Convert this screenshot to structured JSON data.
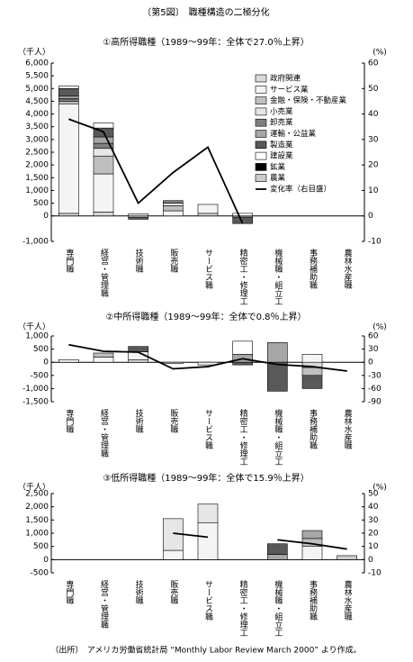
{
  "title": "〔第5図〕　職種構造の二極分化",
  "source": "（出所）　アメリカ労働省統計局 “Monthly Labor Review March 2000” より作成。",
  "chart_data": [
    {
      "type": "bar",
      "title": "①高所得職種（1989～99年：全体で27.0％上昇）",
      "y_label": "（千人）",
      "y2_label": "(%)",
      "legend": "upper right",
      "categories": [
        "専門職",
        "経営・管理職",
        "技術職",
        "販売職",
        "サービス職",
        "精密工・修理工",
        "機械職・組立工",
        "事務補助職",
        "農林水産職"
      ],
      "ylim": [
        -1000,
        6000
      ],
      "yticks": [
        {
          "value": -1000,
          "label": "-1,000"
        },
        0,
        500,
        {
          "value": 1000,
          "label": "1,000"
        },
        {
          "value": 1500,
          "label": "1,500"
        },
        {
          "value": 2000,
          "label": "2,000"
        },
        {
          "value": 2500,
          "label": "2,500"
        },
        {
          "value": 3000,
          "label": "3,000"
        },
        {
          "value": 3500,
          "label": "3,500"
        },
        {
          "value": 4000,
          "label": "4,000"
        },
        {
          "value": 4500,
          "label": "4,500"
        },
        {
          "value": 5000,
          "label": "5,000"
        },
        {
          "value": 5500,
          "label": "5,500"
        },
        {
          "value": 6000,
          "label": "6,000"
        }
      ],
      "y2lim": [
        -10,
        60
      ],
      "y2ticks": [
        -10,
        0,
        10,
        20,
        30,
        40,
        50,
        60
      ],
      "series": [
        {
          "name": "政府関連",
          "color": "#d9d9d9",
          "values": [
            100,
            150,
            -50,
            0,
            100,
            0,
            0,
            0,
            0
          ]
        },
        {
          "name": "サービス業",
          "color": "#f4f4f4",
          "values": [
            4300,
            1500,
            80,
            200,
            350,
            0,
            0,
            0,
            0
          ]
        },
        {
          "name": "金融・保険・不動産業",
          "color": "#bfbfbf",
          "values": [
            100,
            700,
            0,
            200,
            0,
            0,
            0,
            0,
            0
          ]
        },
        {
          "name": "小売業",
          "color": "#e6e6e6",
          "values": [
            50,
            300,
            0,
            100,
            0,
            0,
            0,
            0,
            0
          ]
        },
        {
          "name": "卸売業",
          "color": "#808080",
          "values": [
            50,
            200,
            0,
            100,
            0,
            0,
            0,
            0,
            0
          ]
        },
        {
          "name": "運輸・公益業",
          "color": "#a6a6a6",
          "values": [
            100,
            250,
            0,
            0,
            0,
            -50,
            0,
            0,
            0
          ]
        },
        {
          "name": "製造業",
          "color": "#595959",
          "values": [
            300,
            350,
            -80,
            0,
            0,
            -250,
            0,
            0,
            0
          ]
        },
        {
          "name": "建設業",
          "color": "#ffffff",
          "values": [
            100,
            200,
            0,
            0,
            0,
            100,
            0,
            0,
            0
          ]
        },
        {
          "name": "鉱業",
          "color": "#000000",
          "values": [
            0,
            0,
            0,
            0,
            0,
            0,
            0,
            0,
            0
          ]
        },
        {
          "name": "農業",
          "color": "#cccccc",
          "values": [
            0,
            0,
            0,
            0,
            0,
            0,
            0,
            0,
            0
          ]
        },
        {
          "name": "変化率（右目盛）",
          "color": "#000000",
          "type": "line",
          "axis": "y2",
          "values": [
            38,
            33,
            5,
            17,
            27,
            -3,
            null,
            null,
            null
          ]
        }
      ]
    },
    {
      "type": "bar",
      "title": "②中所得職種（1989～99年：全体で0.8％上昇）",
      "y_label": "（千人）",
      "y2_label": "(%)",
      "categories": [
        "専門職",
        "経営・管理職",
        "技術職",
        "販売職",
        "サービス職",
        "精密工・修理工",
        "機械職・組立工",
        "事務補助職",
        "農林水産職"
      ],
      "ylim": [
        -1500,
        1000
      ],
      "yticks": [
        {
          "value": -1500,
          "label": "-1,500"
        },
        {
          "value": -1000,
          "label": "-1,000"
        },
        -500,
        0,
        500,
        {
          "value": 1000,
          "label": "1,000"
        }
      ],
      "y2lim": [
        -90,
        60
      ],
      "y2ticks": [
        -90,
        -60,
        -30,
        0,
        30,
        60
      ],
      "series": [
        {
          "color": "#d9d9d9",
          "values": [
            0,
            0,
            100,
            0,
            0,
            0,
            0,
            -200,
            0
          ]
        },
        {
          "color": "#f4f4f4",
          "values": [
            100,
            200,
            300,
            0,
            -100,
            0,
            0,
            300,
            0
          ]
        },
        {
          "color": "#bfbfbf",
          "values": [
            0,
            150,
            0,
            0,
            0,
            0,
            0,
            -300,
            0
          ]
        },
        {
          "color": "#e6e6e6",
          "values": [
            0,
            0,
            0,
            -50,
            0,
            0,
            0,
            0,
            0
          ]
        },
        {
          "color": "#808080",
          "values": [
            0,
            0,
            0,
            0,
            0,
            0,
            0,
            0,
            0
          ]
        },
        {
          "color": "#a6a6a6",
          "values": [
            0,
            0,
            0,
            0,
            0,
            300,
            750,
            0,
            0
          ]
        },
        {
          "color": "#595959",
          "values": [
            0,
            0,
            200,
            0,
            0,
            -100,
            -1100,
            -500,
            0
          ]
        },
        {
          "color": "#ffffff",
          "values": [
            0,
            0,
            0,
            0,
            0,
            500,
            0,
            0,
            0
          ]
        },
        {
          "color": "#000000",
          "values": [
            0,
            0,
            0,
            0,
            0,
            0,
            0,
            0,
            0
          ]
        },
        {
          "color": "#cccccc",
          "values": [
            0,
            0,
            0,
            0,
            0,
            0,
            0,
            0,
            0
          ]
        },
        {
          "color": "#000000",
          "type": "line",
          "axis": "y2",
          "values": [
            40,
            25,
            23,
            -15,
            -10,
            8,
            -5,
            -10,
            -20
          ]
        }
      ]
    },
    {
      "type": "bar",
      "title": "③低所得職種（1989～99年：全体で15.9％上昇）",
      "y_label": "（千人）",
      "y2_label": "(%)",
      "categories": [
        "専門職",
        "経営・管理職",
        "技術職",
        "販売職",
        "サービス職",
        "精密工・修理工",
        "機械職・組立工",
        "事務補助職",
        "農林水産職"
      ],
      "ylim": [
        -500,
        2500
      ],
      "yticks": [
        -500,
        0,
        500,
        {
          "value": 1000,
          "label": "1,000"
        },
        {
          "value": 1500,
          "label": "1,500"
        },
        {
          "value": 2000,
          "label": "2,000"
        },
        {
          "value": 2500,
          "label": "2,500"
        }
      ],
      "y2lim": [
        -10,
        50
      ],
      "y2ticks": [
        -10,
        0,
        10,
        20,
        30,
        40,
        50
      ],
      "series": [
        {
          "color": "#d9d9d9",
          "values": [
            0,
            0,
            0,
            0,
            0,
            0,
            0,
            0,
            0
          ]
        },
        {
          "color": "#f4f4f4",
          "values": [
            0,
            0,
            0,
            350,
            1400,
            0,
            0,
            500,
            0
          ]
        },
        {
          "color": "#bfbfbf",
          "values": [
            0,
            0,
            0,
            0,
            0,
            0,
            0,
            300,
            0
          ]
        },
        {
          "color": "#e6e6e6",
          "values": [
            0,
            0,
            0,
            1200,
            700,
            0,
            0,
            0,
            0
          ]
        },
        {
          "color": "#808080",
          "values": [
            0,
            0,
            0,
            0,
            0,
            0,
            0,
            0,
            0
          ]
        },
        {
          "color": "#a6a6a6",
          "values": [
            0,
            0,
            0,
            0,
            0,
            0,
            200,
            300,
            0
          ]
        },
        {
          "color": "#595959",
          "values": [
            0,
            0,
            0,
            0,
            0,
            0,
            400,
            0,
            0
          ]
        },
        {
          "color": "#ffffff",
          "values": [
            0,
            0,
            0,
            0,
            0,
            0,
            0,
            0,
            0
          ]
        },
        {
          "color": "#000000",
          "values": [
            0,
            0,
            0,
            0,
            0,
            0,
            0,
            0,
            0
          ]
        },
        {
          "color": "#cccccc",
          "values": [
            0,
            0,
            0,
            0,
            0,
            0,
            0,
            0,
            150
          ]
        },
        {
          "color": "#000000",
          "type": "line",
          "axis": "y2",
          "values": [
            null,
            null,
            null,
            20,
            17,
            null,
            15,
            12,
            8
          ]
        }
      ]
    }
  ]
}
